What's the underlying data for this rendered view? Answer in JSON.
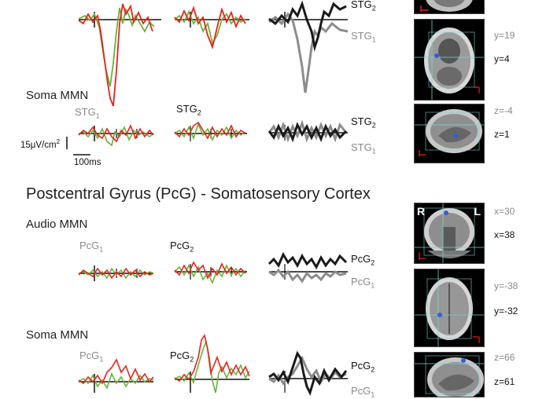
{
  "top_region": {
    "soma_mmn_label": "Soma MMN",
    "stg1_label": "STG",
    "stg1_sub": "1",
    "stg2_label": "STG",
    "stg2_sub": "2",
    "overlay_top_label": "STG",
    "overlay_top_sub": "2",
    "overlay_bottom_label": "STG",
    "overlay_bottom_sub": "1",
    "scale_amplitude": "15μV/cm",
    "scale_amplitude_sup": "2",
    "scale_time": "100ms",
    "coords": [
      {
        "gray": "y=19",
        "black": "y=4"
      },
      {
        "gray": "z=-4",
        "black": "z=1"
      }
    ]
  },
  "pcg_section": {
    "title": "Postcentral Gyrus (PcG) - Somatosensory Cortex",
    "audio_mmn_label": "Audio MMN",
    "soma_mmn_label": "Soma MMN",
    "pcg1_label": "PcG",
    "pcg1_sub": "1",
    "pcg2_label": "PcG",
    "pcg2_sub": "2",
    "overlay_top_label": "PcG",
    "overlay_top_sub": "2",
    "overlay_bottom_label": "PcG",
    "overlay_bottom_sub": "1",
    "orientation_left": "R",
    "orientation_right": "L",
    "coords": [
      {
        "gray": "x=30",
        "black": "x=38"
      },
      {
        "gray": "y=-38",
        "black": "y=-32"
      },
      {
        "gray": "z=66",
        "black": "z=61"
      }
    ]
  },
  "colors": {
    "red": "#e8231e",
    "green": "#6bb33b",
    "black_trace": "#1a1a1a",
    "gray_trace": "#8c8c8c"
  }
}
